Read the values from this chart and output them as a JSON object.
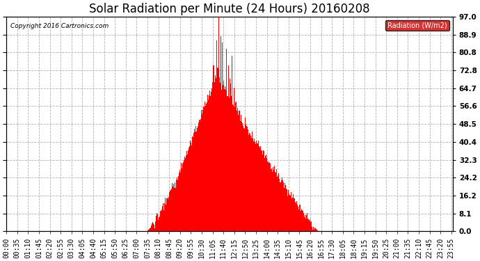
{
  "title": "Solar Radiation per Minute (24 Hours) 20160208",
  "copyright_text": "Copyright 2016 Cartronics.com",
  "legend_label": "Radiation (W/m2)",
  "y_ticks": [
    0.0,
    8.1,
    16.2,
    24.2,
    32.3,
    40.4,
    48.5,
    56.6,
    64.7,
    72.8,
    80.8,
    88.9,
    97.0
  ],
  "ylim": [
    0.0,
    97.0
  ],
  "bar_color": "#ff0000",
  "grid_color": "#b0b0b0",
  "background_color": "#ffffff",
  "title_fontsize": 12,
  "tick_fontsize": 7,
  "legend_bg": "#cc0000",
  "legend_text_color": "#ffffff",
  "baseline_color": "#ff0000"
}
